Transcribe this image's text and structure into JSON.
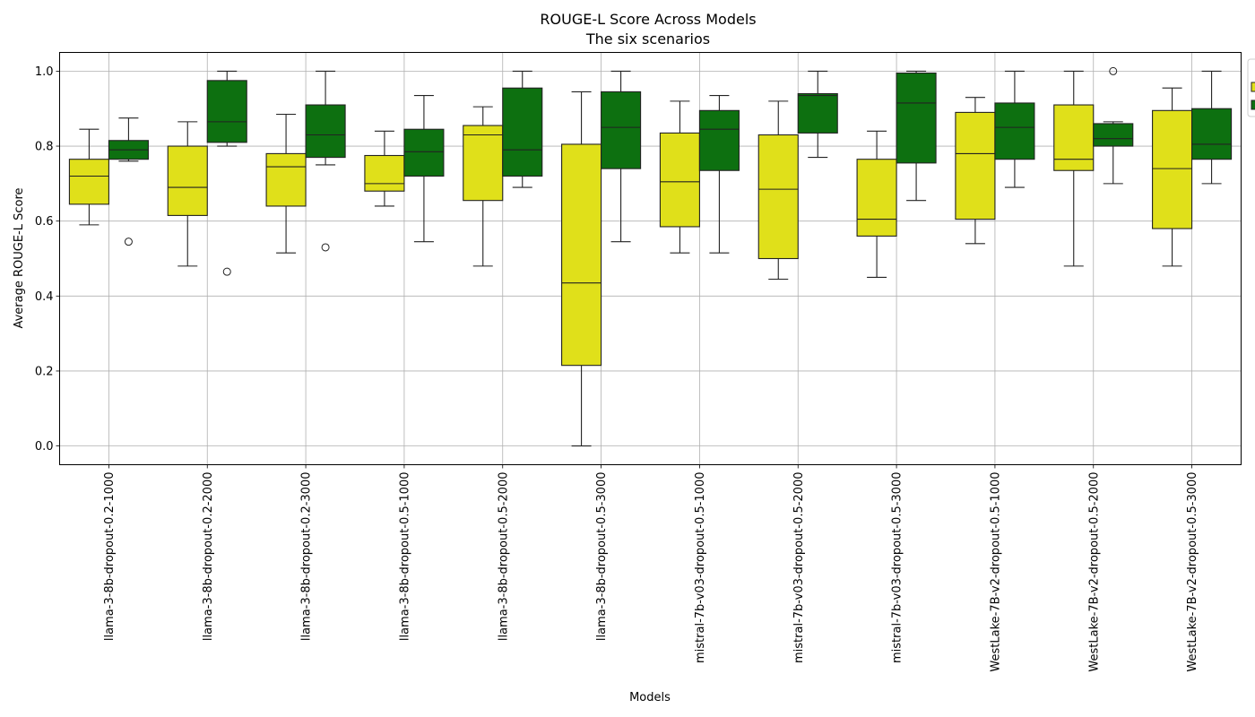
{
  "chart_data": {
    "type": "box",
    "title": "ROUGE-L Score Across Models",
    "subtitle": "The six scenarios",
    "xlabel": "Models",
    "ylabel": "Average ROUGE-L Score",
    "ylim": [
      -0.05,
      1.05
    ],
    "yticks": [
      "0.0",
      "0.2",
      "0.4",
      "0.6",
      "0.8",
      "1.0"
    ],
    "grid": true,
    "legend_position": "right, clipped at edge",
    "categories": [
      "llama-3-8b-dropout-0.2-1000",
      "llama-3-8b-dropout-0.2-2000",
      "llama-3-8b-dropout-0.2-3000",
      "llama-3-8b-dropout-0.5-1000",
      "llama-3-8b-dropout-0.5-2000",
      "llama-3-8b-dropout-0.5-3000",
      "mistral-7b-v03-dropout-0.5-1000",
      "mistral-7b-v03-dropout-0.5-2000",
      "mistral-7b-v03-dropout-0.5-3000",
      "WestLake-7B-v2-dropout-0.5-1000",
      "WestLake-7B-v2-dropout-0.5-2000",
      "WestLake-7B-v2-dropout-0.5-3000"
    ],
    "series": [
      {
        "color": "#ffff00",
        "boxes": [
          {
            "whisker_low": 0.59,
            "q1": 0.645,
            "median": 0.72,
            "q3": 0.765,
            "whisker_high": 0.845,
            "outliers": []
          },
          {
            "whisker_low": 0.48,
            "q1": 0.615,
            "median": 0.69,
            "q3": 0.8,
            "whisker_high": 0.865,
            "outliers": []
          },
          {
            "whisker_low": 0.515,
            "q1": 0.64,
            "median": 0.745,
            "q3": 0.78,
            "whisker_high": 0.885,
            "outliers": []
          },
          {
            "whisker_low": 0.64,
            "q1": 0.68,
            "median": 0.7,
            "q3": 0.775,
            "whisker_high": 0.84,
            "outliers": []
          },
          {
            "whisker_low": 0.48,
            "q1": 0.655,
            "median": 0.83,
            "q3": 0.855,
            "whisker_high": 0.905,
            "outliers": []
          },
          {
            "whisker_low": 0.0,
            "q1": 0.215,
            "median": 0.435,
            "q3": 0.805,
            "whisker_high": 0.945,
            "outliers": []
          },
          {
            "whisker_low": 0.515,
            "q1": 0.585,
            "median": 0.705,
            "q3": 0.835,
            "whisker_high": 0.92,
            "outliers": []
          },
          {
            "whisker_low": 0.445,
            "q1": 0.5,
            "median": 0.685,
            "q3": 0.83,
            "whisker_high": 0.92,
            "outliers": []
          },
          {
            "whisker_low": 0.45,
            "q1": 0.56,
            "median": 0.605,
            "q3": 0.765,
            "whisker_high": 0.84,
            "outliers": []
          },
          {
            "whisker_low": 0.54,
            "q1": 0.605,
            "median": 0.78,
            "q3": 0.89,
            "whisker_high": 0.93,
            "outliers": []
          },
          {
            "whisker_low": 0.48,
            "q1": 0.735,
            "median": 0.765,
            "q3": 0.91,
            "whisker_high": 1.0,
            "outliers": []
          },
          {
            "whisker_low": 0.48,
            "q1": 0.58,
            "median": 0.74,
            "q3": 0.895,
            "whisker_high": 0.955,
            "outliers": []
          }
        ]
      },
      {
        "color": "#008000",
        "boxes": [
          {
            "whisker_low": 0.76,
            "q1": 0.765,
            "median": 0.79,
            "q3": 0.815,
            "whisker_high": 0.875,
            "outliers": [
              0.545
            ]
          },
          {
            "whisker_low": 0.8,
            "q1": 0.81,
            "median": 0.865,
            "q3": 0.975,
            "whisker_high": 1.0,
            "outliers": [
              0.465
            ]
          },
          {
            "whisker_low": 0.75,
            "q1": 0.77,
            "median": 0.83,
            "q3": 0.91,
            "whisker_high": 1.0,
            "outliers": [
              0.53
            ]
          },
          {
            "whisker_low": 0.545,
            "q1": 0.72,
            "median": 0.785,
            "q3": 0.845,
            "whisker_high": 0.935,
            "outliers": []
          },
          {
            "whisker_low": 0.69,
            "q1": 0.72,
            "median": 0.79,
            "q3": 0.955,
            "whisker_high": 1.0,
            "outliers": []
          },
          {
            "whisker_low": 0.545,
            "q1": 0.74,
            "median": 0.85,
            "q3": 0.945,
            "whisker_high": 1.0,
            "outliers": []
          },
          {
            "whisker_low": 0.515,
            "q1": 0.735,
            "median": 0.845,
            "q3": 0.895,
            "whisker_high": 0.935,
            "outliers": []
          },
          {
            "whisker_low": 0.77,
            "q1": 0.835,
            "median": 0.935,
            "q3": 0.94,
            "whisker_high": 1.0,
            "outliers": []
          },
          {
            "whisker_low": 0.655,
            "q1": 0.755,
            "median": 0.915,
            "q3": 0.995,
            "whisker_high": 1.0,
            "outliers": []
          },
          {
            "whisker_low": 0.69,
            "q1": 0.765,
            "median": 0.85,
            "q3": 0.915,
            "whisker_high": 1.0,
            "outliers": []
          },
          {
            "whisker_low": 0.7,
            "q1": 0.8,
            "median": 0.82,
            "q3": 0.86,
            "whisker_high": 0.865,
            "outliers": [
              1.0
            ]
          },
          {
            "whisker_low": 0.7,
            "q1": 0.765,
            "median": 0.805,
            "q3": 0.9,
            "whisker_high": 1.0,
            "outliers": []
          }
        ]
      }
    ]
  }
}
